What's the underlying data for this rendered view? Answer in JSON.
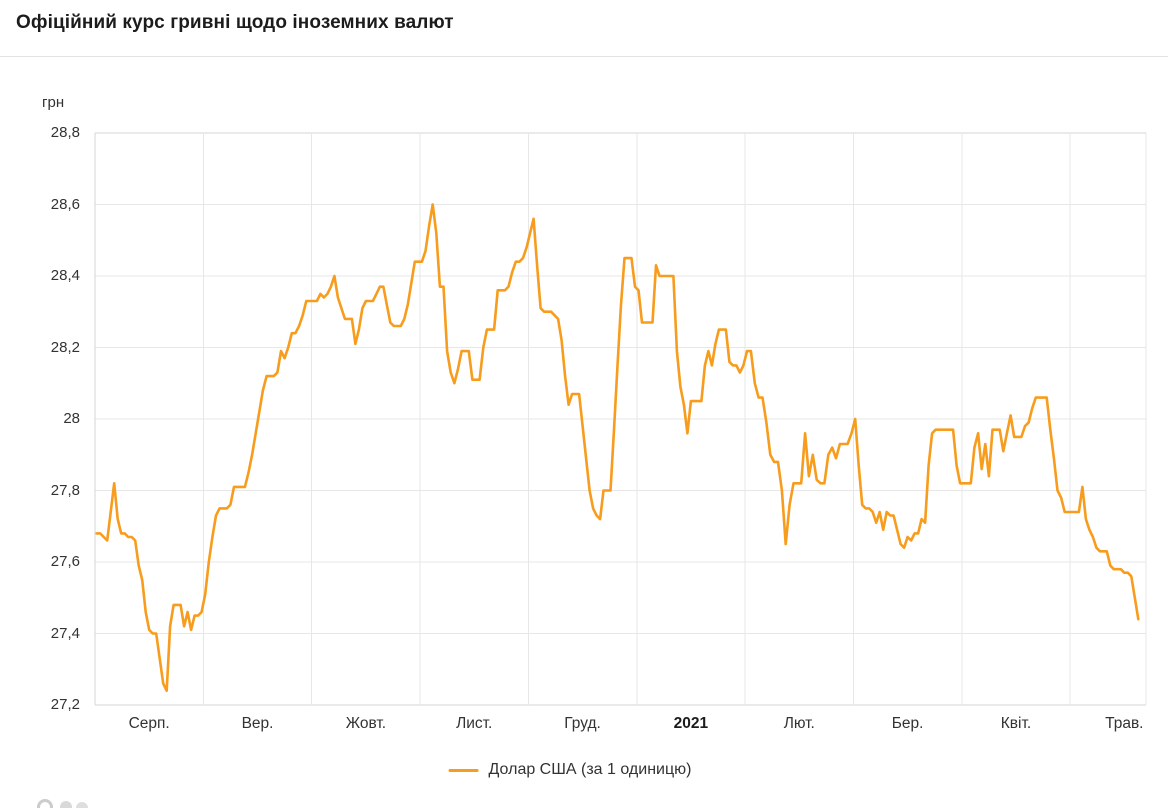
{
  "page": {
    "title": "Офіційний курс гривні щодо іноземних валют"
  },
  "legend": {
    "label": "Долар США (за 1 одиницю)"
  },
  "chart_data": {
    "type": "line",
    "title": "Офіційний курс гривні щодо іноземних валют",
    "ylabel": "грн",
    "xlabel": "",
    "grid": true,
    "legend_position": "bottom-center",
    "line_color": "#f79c1c",
    "grid_color": "#e7e7e7",
    "frame_color": "#d5d5d5",
    "y_axis": {
      "unit": "грн",
      "min": 27.2,
      "max": 28.8,
      "step": 0.2,
      "tick_labels_top_to_bottom": [
        "28,8",
        "28,6",
        "28,4",
        "28,2",
        "28",
        "27,8",
        "27,6",
        "27,4",
        "27,2"
      ]
    },
    "series_name": "Долар США (за 1 одиницю)",
    "months": [
      {
        "label": "Серп.",
        "bold": false,
        "days": 31,
        "values": [
          27.68,
          27.68,
          27.67,
          27.66,
          27.74,
          27.82,
          27.72,
          27.68,
          27.68,
          27.67,
          27.67,
          27.66,
          27.59,
          27.55,
          27.46,
          27.41,
          27.4,
          27.4,
          27.33,
          27.26,
          27.24,
          27.42,
          27.48,
          27.48,
          27.48,
          27.42,
          27.46,
          27.41,
          27.45,
          27.45,
          27.46
        ]
      },
      {
        "label": "Вер.",
        "bold": false,
        "days": 30,
        "values": [
          27.51,
          27.6,
          27.67,
          27.73,
          27.75,
          27.75,
          27.75,
          27.76,
          27.81,
          27.81,
          27.81,
          27.81,
          27.85,
          27.9,
          27.96,
          28.02,
          28.08,
          28.12,
          28.12,
          28.12,
          28.13,
          28.19,
          28.17,
          28.2,
          28.24,
          28.24,
          28.26,
          28.29,
          28.33,
          28.33
        ]
      },
      {
        "label": "Жовт.",
        "bold": false,
        "days": 31,
        "values": [
          28.33,
          28.33,
          28.35,
          28.34,
          28.35,
          28.37,
          28.4,
          28.34,
          28.31,
          28.28,
          28.28,
          28.28,
          28.21,
          28.25,
          28.31,
          28.33,
          28.33,
          28.33,
          28.35,
          28.37,
          28.37,
          28.32,
          28.27,
          28.26,
          28.26,
          28.26,
          28.28,
          28.32,
          28.38,
          28.44,
          28.44
        ]
      },
      {
        "label": "Лист.",
        "bold": false,
        "days": 30,
        "values": [
          28.44,
          28.47,
          28.54,
          28.6,
          28.52,
          28.37,
          28.37,
          28.19,
          28.13,
          28.1,
          28.14,
          28.19,
          28.19,
          28.19,
          28.11,
          28.11,
          28.11,
          28.2,
          28.25,
          28.25,
          28.25,
          28.36,
          28.36,
          28.36,
          28.37,
          28.41,
          28.44,
          28.44,
          28.45,
          28.48
        ]
      },
      {
        "label": "Груд.",
        "bold": false,
        "days": 31,
        "values": [
          28.52,
          28.56,
          28.43,
          28.31,
          28.3,
          28.3,
          28.3,
          28.29,
          28.28,
          28.22,
          28.12,
          28.04,
          28.07,
          28.07,
          28.07,
          27.98,
          27.89,
          27.8,
          27.75,
          27.73,
          27.72,
          27.8,
          27.8,
          27.8,
          27.97,
          28.15,
          28.32,
          28.45,
          28.45,
          28.45,
          28.37
        ]
      },
      {
        "label": "2021",
        "bold": true,
        "days": 31,
        "values": [
          28.36,
          28.27,
          28.27,
          28.27,
          28.27,
          28.43,
          28.4,
          28.4,
          28.4,
          28.4,
          28.4,
          28.19,
          28.09,
          28.04,
          27.96,
          28.05,
          28.05,
          28.05,
          28.05,
          28.15,
          28.19,
          28.15,
          28.21,
          28.25,
          28.25,
          28.25,
          28.16,
          28.15,
          28.15,
          28.13,
          28.15
        ]
      },
      {
        "label": "Лют.",
        "bold": false,
        "days": 28,
        "values": [
          28.19,
          28.19,
          28.1,
          28.06,
          28.06,
          27.99,
          27.9,
          27.88,
          27.88,
          27.8,
          27.65,
          27.76,
          27.82,
          27.82,
          27.82,
          27.96,
          27.84,
          27.9,
          27.83,
          27.82,
          27.82,
          27.9,
          27.92,
          27.89,
          27.93,
          27.93,
          27.93,
          27.96
        ]
      },
      {
        "label": "Бер.",
        "bold": false,
        "days": 31,
        "values": [
          28.0,
          27.87,
          27.76,
          27.75,
          27.75,
          27.74,
          27.71,
          27.74,
          27.69,
          27.74,
          27.73,
          27.73,
          27.69,
          27.65,
          27.64,
          27.67,
          27.66,
          27.68,
          27.68,
          27.72,
          27.71,
          27.87,
          27.96,
          27.97,
          27.97,
          27.97,
          27.97,
          27.97,
          27.97,
          27.87,
          27.82
        ]
      },
      {
        "label": "Квіт.",
        "bold": false,
        "days": 30,
        "values": [
          27.82,
          27.82,
          27.82,
          27.92,
          27.96,
          27.86,
          27.93,
          27.84,
          27.97,
          27.97,
          27.97,
          27.91,
          27.96,
          28.01,
          27.95,
          27.95,
          27.95,
          27.98,
          27.99,
          28.03,
          28.06,
          28.06,
          28.06,
          28.06,
          27.97,
          27.89,
          27.8,
          27.78,
          27.74,
          27.74
        ]
      },
      {
        "label": "Трав.",
        "bold": false,
        "days": 31,
        "values": [
          27.74,
          27.74,
          27.74,
          27.81,
          27.72,
          27.69,
          27.67,
          27.64,
          27.63,
          27.63,
          27.63,
          27.59,
          27.58,
          27.58,
          27.58,
          27.57,
          27.57,
          27.56,
          27.5,
          27.44
        ]
      }
    ]
  }
}
